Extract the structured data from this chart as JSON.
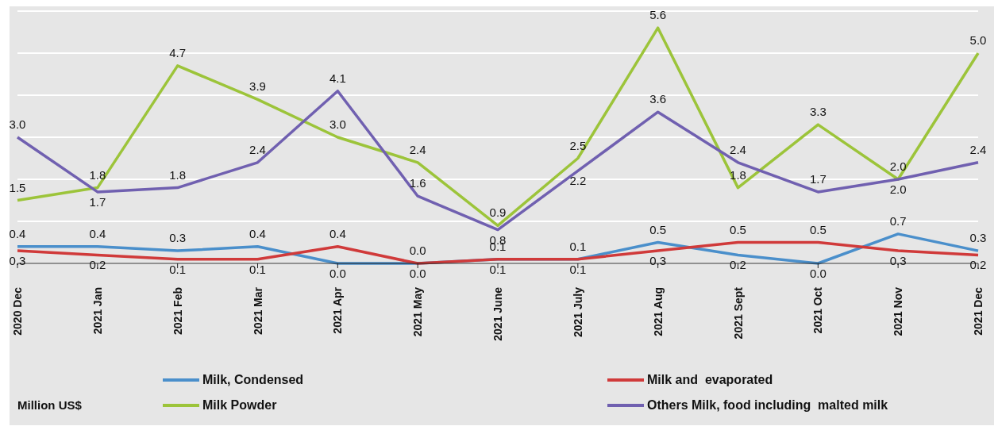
{
  "chart_data": {
    "type": "line",
    "annotations": [
      "Million US$"
    ],
    "categories": [
      "2020 Dec",
      "2021 Jan",
      "2021 Feb",
      "2021 Mar",
      "2021 Apr",
      "2021 May",
      "2021 June",
      "2021 July",
      "2021 Aug",
      "2021 Sept",
      "2021 Oct",
      "2021 Nov",
      "2021 Dec"
    ],
    "series": [
      {
        "name": "Milk, Condensed",
        "color": "#4a8fcb",
        "values": [
          0.4,
          0.4,
          0.3,
          0.4,
          0,
          0,
          0.1,
          0.1,
          0.5,
          0.2,
          0,
          0.7,
          0.3
        ],
        "value_labels": [
          "0.4",
          "0.4",
          "0.3",
          "0.4",
          "0.0",
          "0.0",
          "0.1",
          "0.1",
          "0.5",
          "0.2",
          "0.0",
          "0.7",
          "0.3"
        ]
      },
      {
        "name": "Milk and  evaporated",
        "color": "#d03a3a",
        "values": [
          0.3,
          0.2,
          0.1,
          0.1,
          0.4,
          0,
          0.1,
          0.1,
          0.3,
          0.5,
          0.5,
          0.3,
          0.2
        ],
        "value_labels": [
          "0.3",
          "0.2",
          "0.1",
          "0.1",
          "0.4",
          "0.0",
          "0.1",
          "0.1",
          "0.3",
          "0.5",
          "0.5",
          "0.3",
          "0.2"
        ]
      },
      {
        "name": "Milk Powder",
        "color": "#9cc43a",
        "values": [
          1.5,
          1.8,
          4.7,
          3.9,
          3,
          2.4,
          0.9,
          2.5,
          5.6,
          1.8,
          3.3,
          2,
          5
        ],
        "value_labels": [
          "1.5",
          "1.8",
          "4.7",
          "3.9",
          "3.0",
          "2.4",
          "0.9",
          "2.5",
          "5.6",
          "1.8",
          "3.3",
          "2.0",
          "5.0"
        ]
      },
      {
        "name": "Others Milk, food including  malted milk",
        "color": "#7060b0",
        "values": [
          3,
          1.7,
          1.8,
          2.4,
          4.1,
          1.6,
          0.8,
          2.2,
          3.6,
          2.4,
          1.7,
          2,
          2.4
        ],
        "value_labels": [
          "3.0",
          "1.7",
          "1.8",
          "2.4",
          "4.1",
          "1.6",
          "0.8",
          "2.2",
          "3.6",
          "2.4",
          "1.7",
          "2.0",
          "2.4"
        ]
      }
    ],
    "tick_labels": "x",
    "grid": "y",
    "legend": "bottom",
    "line_style": "solid"
  }
}
